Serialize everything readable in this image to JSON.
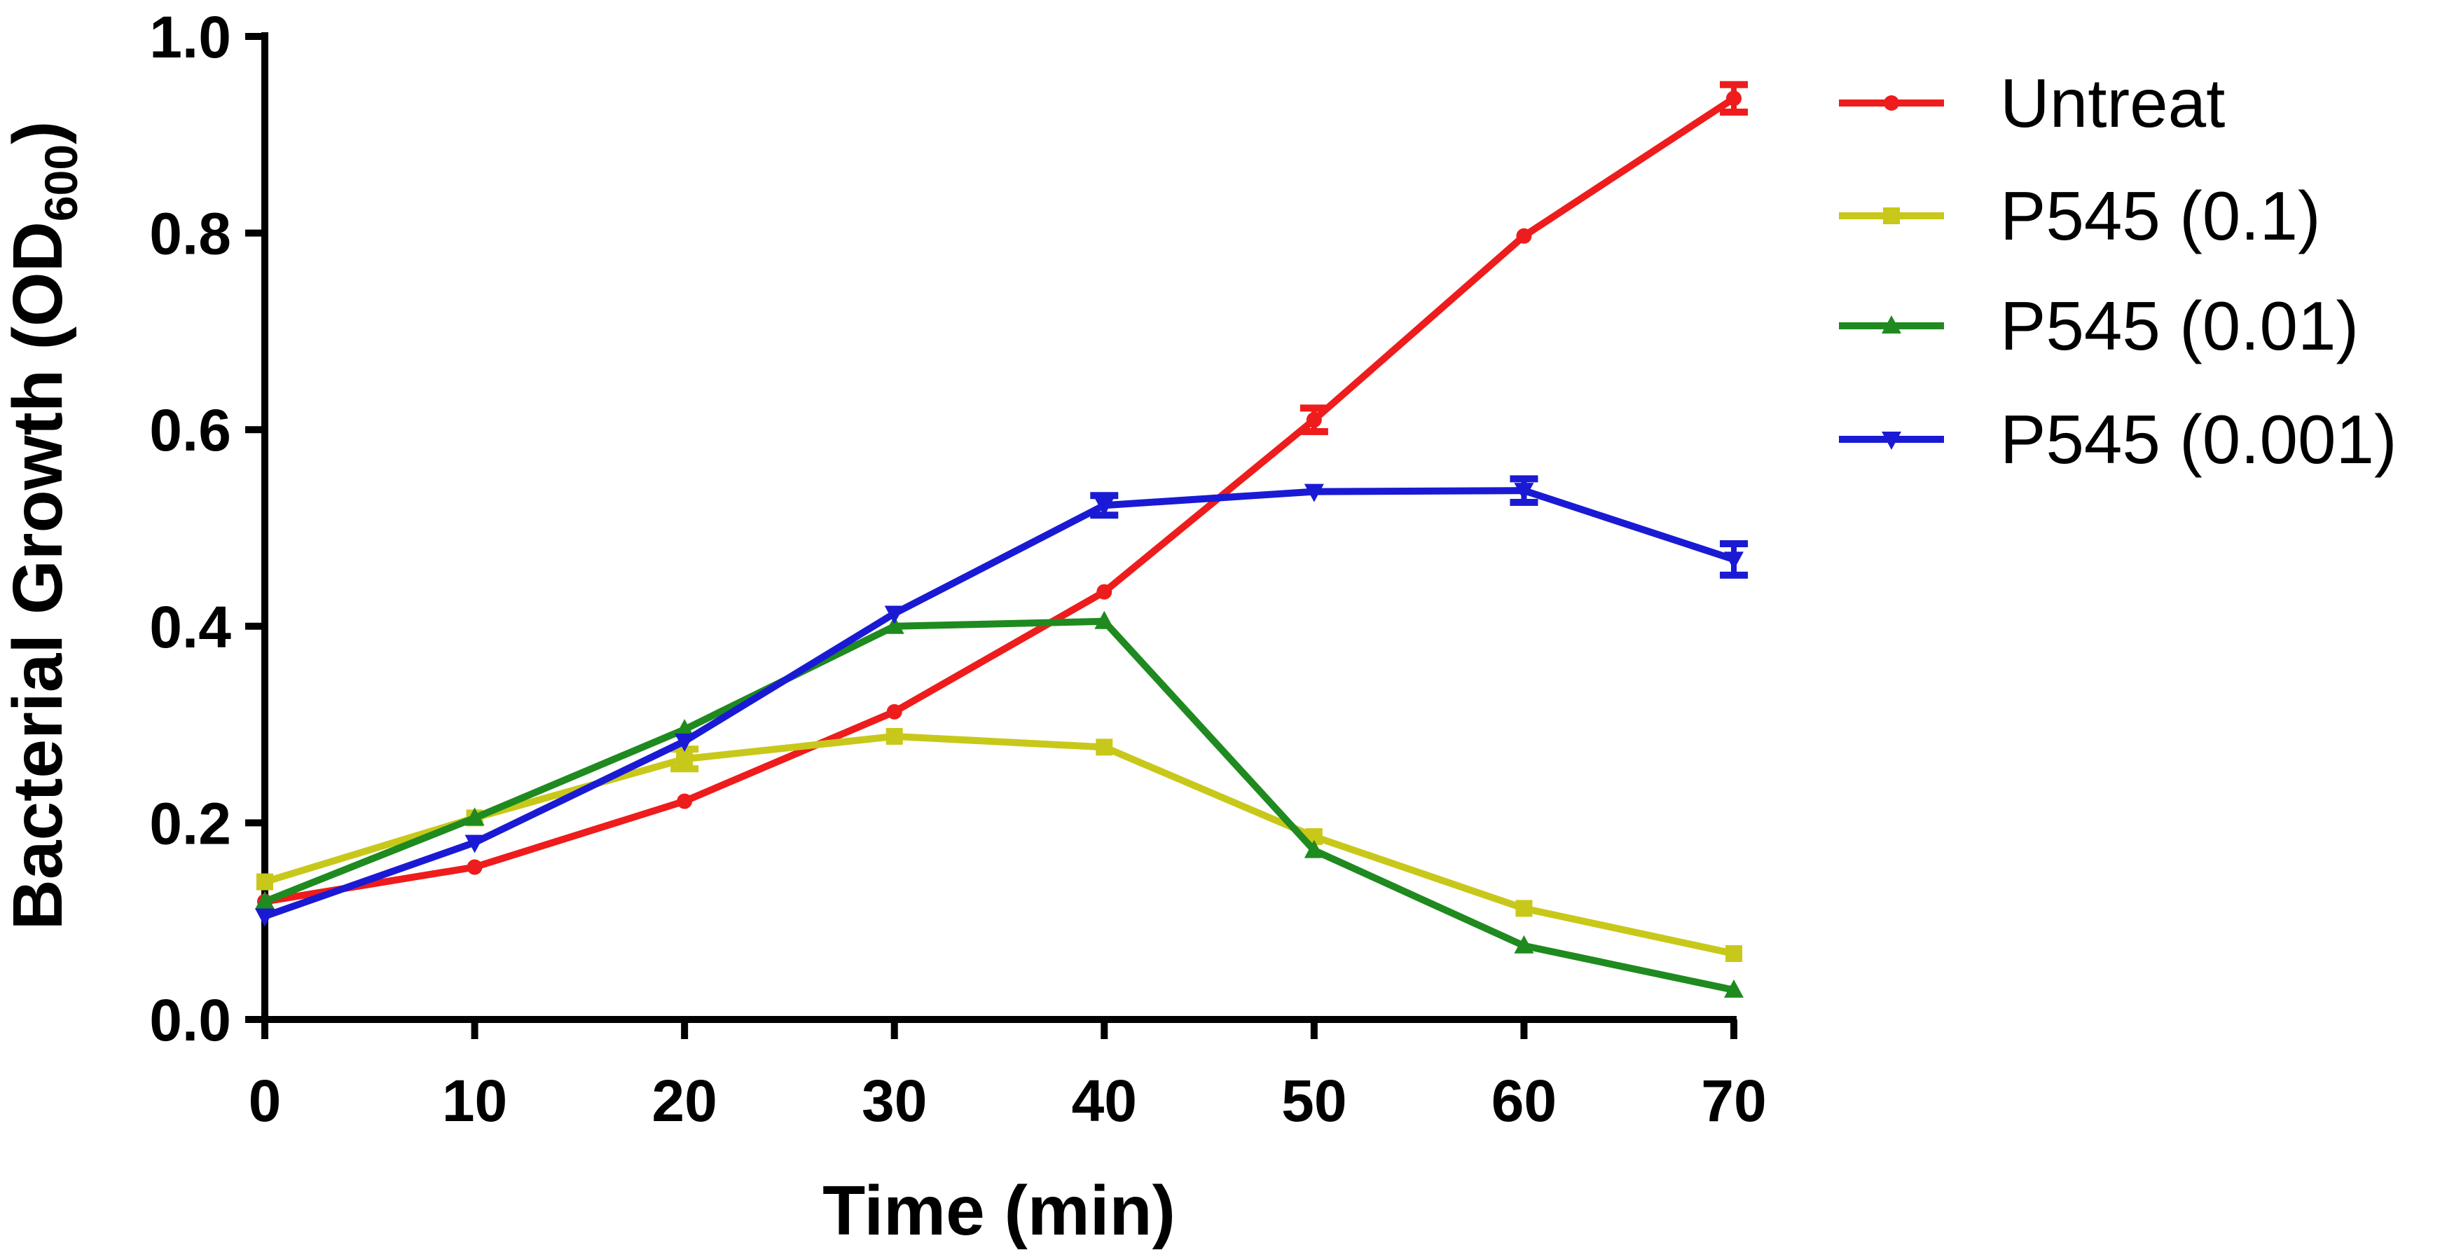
{
  "chart_data": {
    "type": "line",
    "title": "",
    "xlabel": "Time (min)",
    "ylabel": "Bacterial Growth (OD",
    "ylabel_subscript": "600",
    "ylabel_close": ")",
    "xlim": [
      0,
      70
    ],
    "ylim": [
      0.0,
      1.0
    ],
    "x_ticks": [
      0,
      10,
      20,
      30,
      40,
      50,
      60,
      70
    ],
    "x_tick_labels": [
      "0",
      "10",
      "20",
      "30",
      "40",
      "50",
      "60",
      "70"
    ],
    "y_ticks": [
      0.0,
      0.2,
      0.4,
      0.6,
      0.8,
      1.0
    ],
    "y_tick_labels": [
      "0.0",
      "0.2",
      "0.4",
      "0.6",
      "0.8",
      "1.0"
    ],
    "grid": false,
    "legend_position": "right",
    "x": [
      0,
      10,
      20,
      30,
      40,
      50,
      60,
      70
    ],
    "series": [
      {
        "name": "Untreat",
        "color": "#ee1c1c",
        "marker": "circle",
        "values": [
          0.12,
          0.155,
          0.222,
          0.313,
          0.435,
          0.61,
          0.797,
          0.937
        ],
        "errors": [
          0.004,
          0.004,
          0.004,
          0.004,
          0.004,
          0.012,
          0.004,
          0.014
        ]
      },
      {
        "name": "P545 (0.1)",
        "color": "#c8c81a",
        "marker": "square",
        "values": [
          0.14,
          0.205,
          0.265,
          0.288,
          0.277,
          0.186,
          0.113,
          0.067
        ],
        "errors": [
          0.004,
          0.004,
          0.01,
          0.004,
          0.004,
          0.004,
          0.004,
          0.004
        ]
      },
      {
        "name": "P545 (0.01)",
        "color": "#1f8a1f",
        "marker": "triangle-up",
        "values": [
          0.12,
          0.205,
          0.295,
          0.4,
          0.405,
          0.172,
          0.075,
          0.03
        ],
        "errors": [
          0.004,
          0.004,
          0.004,
          0.004,
          0.004,
          0.004,
          0.004,
          0.004
        ]
      },
      {
        "name": "P545 (0.001)",
        "color": "#1a1ad4",
        "marker": "triangle-down",
        "values": [
          0.105,
          0.18,
          0.283,
          0.413,
          0.523,
          0.537,
          0.538,
          0.468
        ],
        "errors": [
          0.004,
          0.004,
          0.004,
          0.004,
          0.01,
          0.004,
          0.012,
          0.016
        ]
      }
    ]
  }
}
